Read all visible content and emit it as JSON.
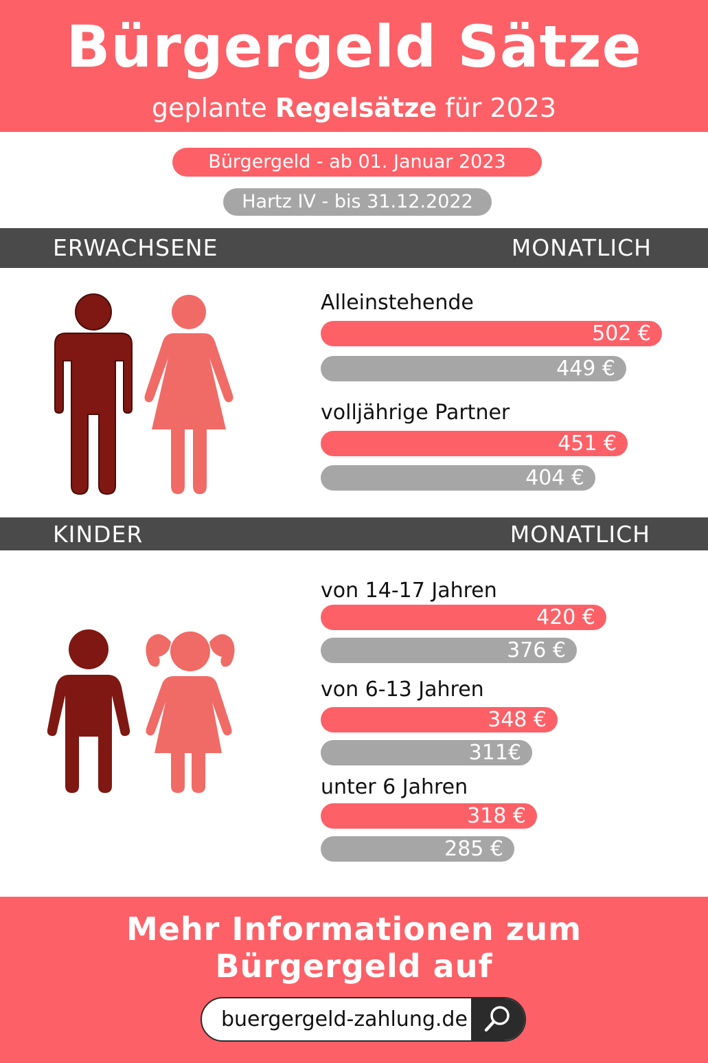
{
  "header": {
    "title": "Bürgergeld Sätze",
    "subtitle_pre": "geplante ",
    "subtitle_bold": "Regelsätze",
    "subtitle_post": " für 2023"
  },
  "colors": {
    "accent": "#fe6067",
    "grey": "#a6a6a6",
    "bar_dark": "#4a4a4a",
    "figure_dark": "#7f1812",
    "figure_light": "#f06b66"
  },
  "legend": {
    "new": "Bürgergeld - ab 01. Januar 2023",
    "old": "Hartz IV - bis 31.12.2022"
  },
  "sections": {
    "adults": {
      "label": "ERWACHSENE",
      "period": "MONATLICH"
    },
    "children": {
      "label": "KINDER",
      "period": "MONATLICH"
    }
  },
  "chart_data": {
    "type": "bar",
    "orientation": "horizontal",
    "series": [
      {
        "name": "Bürgergeld - ab 01. Januar 2023",
        "color": "#fe6067"
      },
      {
        "name": "Hartz IV - bis 31.12.2022",
        "color": "#a6a6a6"
      }
    ],
    "groups": [
      {
        "section": "adults",
        "categories": [
          {
            "label": "Alleinstehende",
            "values": [
              502,
              449
            ],
            "value_labels": [
              "502 €",
              "449 €"
            ]
          },
          {
            "label": "volljährige Partner",
            "values": [
              451,
              404
            ],
            "value_labels": [
              "451 €",
              "404 €"
            ]
          }
        ]
      },
      {
        "section": "children",
        "categories": [
          {
            "label": "von 14-17 Jahren",
            "values": [
              420,
              376
            ],
            "value_labels": [
              "420 €",
              "376 €"
            ]
          },
          {
            "label": "von 6-13 Jahren",
            "values": [
              348,
              311
            ],
            "value_labels": [
              "348 €",
              "311€"
            ]
          },
          {
            "label": "unter 6 Jahren",
            "values": [
              318,
              285
            ],
            "value_labels": [
              "318 €",
              "285 €"
            ]
          }
        ]
      }
    ]
  },
  "footer": {
    "line1": "Mehr Informationen zum",
    "line2": "Bürgergeld auf",
    "search_value": "buergergeld-zahlung.de"
  },
  "icons": {
    "adult_male": "man-icon",
    "adult_female": "woman-icon",
    "child_male": "boy-icon",
    "child_female": "girl-icon",
    "search": "search-icon"
  }
}
